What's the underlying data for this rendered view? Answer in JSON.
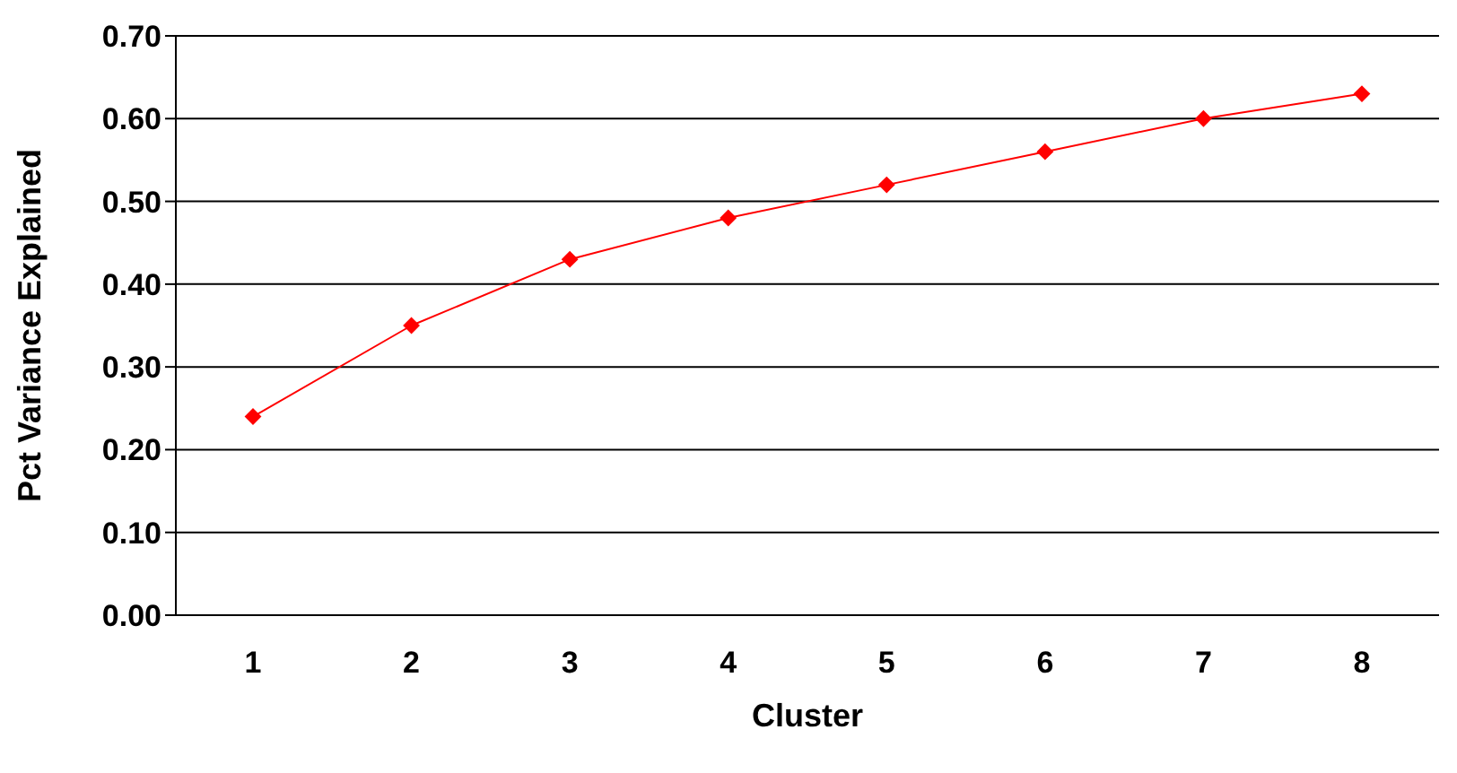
{
  "chart_data": {
    "type": "line",
    "xlabel": "Cluster",
    "ylabel": "Pct Variance Explained",
    "categories": [
      "1",
      "2",
      "3",
      "4",
      "5",
      "6",
      "7",
      "8"
    ],
    "series": [
      {
        "color": "#ff0000",
        "values": [
          0.24,
          0.35,
          0.43,
          0.48,
          0.52,
          0.56,
          0.6,
          0.63
        ]
      }
    ],
    "ylim": [
      0,
      0.7
    ],
    "yticks": [
      {
        "value": 0,
        "label": "0.00"
      },
      {
        "value": 0.1,
        "label": "0.10"
      },
      {
        "value": 0.2,
        "label": "0.20"
      },
      {
        "value": 0.3,
        "label": "0.30"
      },
      {
        "value": 0.4,
        "label": "0.40"
      },
      {
        "value": 0.5,
        "label": "0.50"
      },
      {
        "value": 0.6,
        "label": "0.60"
      },
      {
        "value": 0.7,
        "label": "0.70"
      }
    ],
    "grid": "y",
    "marker": "diamond",
    "line_style": "solid",
    "legend": false
  }
}
